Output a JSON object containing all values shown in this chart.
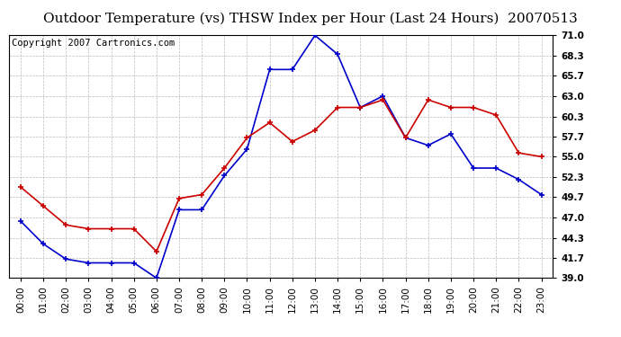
{
  "title": "Outdoor Temperature (vs) THSW Index per Hour (Last 24 Hours)  20070513",
  "copyright": "Copyright 2007 Cartronics.com",
  "hours": [
    "00:00",
    "01:00",
    "02:00",
    "03:00",
    "04:00",
    "05:00",
    "06:00",
    "07:00",
    "08:00",
    "09:00",
    "10:00",
    "11:00",
    "12:00",
    "13:00",
    "14:00",
    "15:00",
    "16:00",
    "17:00",
    "18:00",
    "19:00",
    "20:00",
    "21:00",
    "22:00",
    "23:00"
  ],
  "temp_red": [
    51.0,
    48.5,
    46.0,
    45.5,
    45.5,
    45.5,
    42.5,
    49.5,
    50.0,
    53.5,
    57.5,
    59.5,
    57.0,
    58.5,
    61.5,
    61.5,
    62.5,
    57.5,
    62.5,
    61.5,
    61.5,
    60.5,
    55.5,
    55.0
  ],
  "thsw_blue": [
    46.5,
    43.5,
    41.5,
    41.0,
    41.0,
    41.0,
    39.0,
    48.0,
    48.0,
    52.5,
    56.0,
    66.5,
    66.5,
    71.0,
    68.5,
    61.5,
    63.0,
    57.5,
    56.5,
    58.0,
    53.5,
    53.5,
    52.0,
    50.0
  ],
  "ylim": [
    39.0,
    71.0
  ],
  "yticks": [
    39.0,
    41.7,
    44.3,
    47.0,
    49.7,
    52.3,
    55.0,
    57.7,
    60.3,
    63.0,
    65.7,
    68.3,
    71.0
  ],
  "red_color": "#cc0000",
  "blue_color": "#0000cc",
  "grid_color": "#bbbbbb",
  "bg_color": "#ffffff",
  "title_fontsize": 11,
  "copyright_fontsize": 7.5
}
